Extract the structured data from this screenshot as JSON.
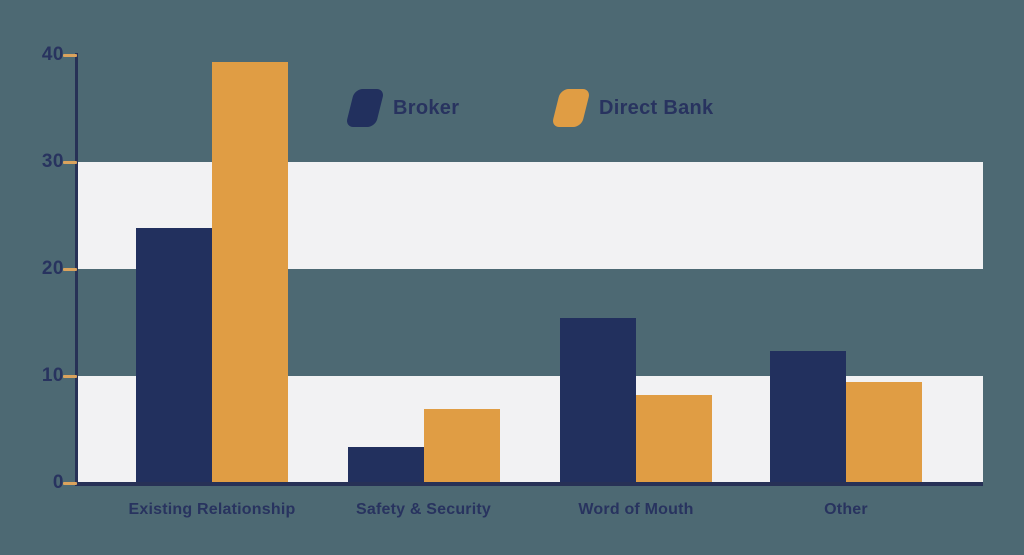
{
  "page": {
    "background_color": "#4d6973"
  },
  "chart_data": {
    "type": "bar",
    "title": "",
    "xlabel": "",
    "ylabel": "",
    "categories": [
      "Existing Relationship",
      "Safety & Security",
      "Word of Mouth",
      "Other"
    ],
    "series": [
      {
        "name": "Broker",
        "color": "#22305e",
        "values": [
          23.8,
          3.4,
          15.4,
          12.3
        ]
      },
      {
        "name": "Direct Bank",
        "color": "#e09d44",
        "values": [
          39.3,
          6.9,
          8.2,
          9.4
        ]
      }
    ],
    "ylim": [
      0,
      40
    ],
    "yticks": [
      0,
      10,
      20,
      30,
      40
    ],
    "grid": false,
    "background_bands": {
      "color": "#f2f2f3",
      "ranges": [
        [
          20,
          30
        ],
        [
          0,
          10
        ]
      ]
    },
    "axis_color": "#273156",
    "tick_color": "#dba35d",
    "label_color": "#28335f",
    "legend_position": "top-center"
  }
}
